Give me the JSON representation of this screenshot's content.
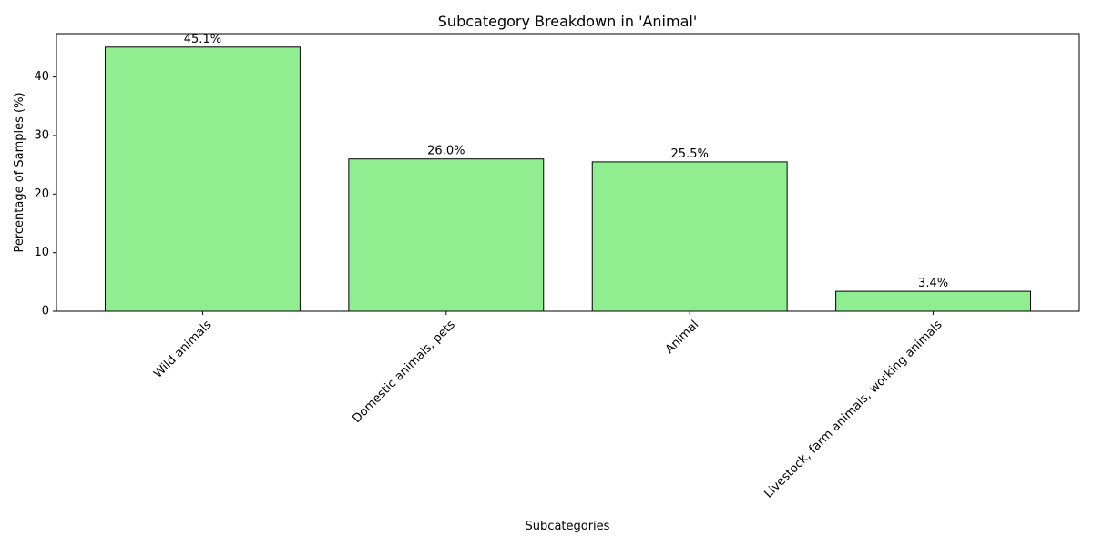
{
  "chart_data": {
    "type": "bar",
    "title": "Subcategory Breakdown in 'Animal'",
    "xlabel": "Subcategories",
    "ylabel": "Percentage of Samples (%)",
    "categories": [
      "Wild animals",
      "Domestic animals, pets",
      "Animal",
      "Livestock, farm animals, working animals"
    ],
    "values": [
      45.1,
      26.0,
      25.5,
      3.4
    ],
    "value_labels": [
      "45.1%",
      "26.0%",
      "25.5%",
      "3.4%"
    ],
    "ylim": [
      0,
      47.4
    ],
    "yticks": [
      0,
      10,
      20,
      30,
      40
    ],
    "grid": false,
    "legend": "none",
    "bar_color": "#90ee90",
    "edge_color": "#000000",
    "x_tick_rotation": 45
  }
}
